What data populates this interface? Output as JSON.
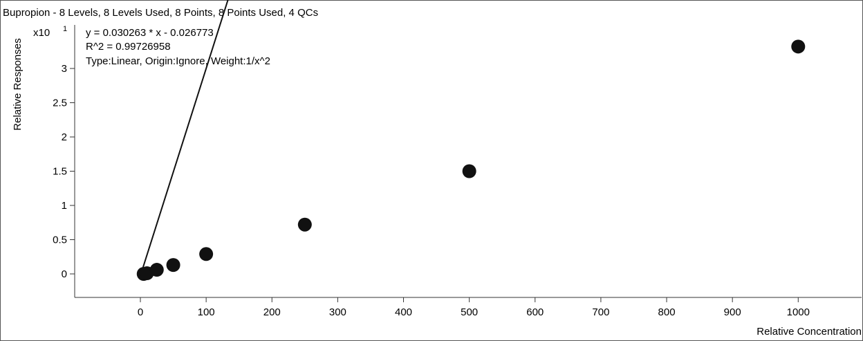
{
  "chart_data": {
    "type": "scatter",
    "title": "Bupropion - 8 Levels, 8 Levels Used, 8 Points, 8 Points Used, 4 QCs",
    "equation": "y = 0.030263 * x  - 0.026773",
    "r_squared": "R^2 = 0.99726958",
    "fit_info": "Type:Linear, Origin:Ignore, Weight:1/x^2",
    "xlabel": "Relative Concentration",
    "ylabel": "Relative Responses",
    "y_multiplier": "x10",
    "y_exponent": "1",
    "xlim": [
      -100,
      1095
    ],
    "ylim": [
      -0.35,
      3.6
    ],
    "x_ticks": [
      "0",
      "100",
      "200",
      "300",
      "400",
      "500",
      "600",
      "700",
      "800",
      "900",
      "1000"
    ],
    "y_ticks": [
      "0",
      "0.5",
      "1",
      "1.5",
      "2",
      "2.5",
      "3"
    ],
    "fit": {
      "slope": 0.030263,
      "intercept": -0.026773
    },
    "points": [
      {
        "x": 5,
        "y": 0.0
      },
      {
        "x": 10,
        "y": 0.01
      },
      {
        "x": 25,
        "y": 0.06
      },
      {
        "x": 50,
        "y": 0.13
      },
      {
        "x": 100,
        "y": 0.29
      },
      {
        "x": 250,
        "y": 0.72
      },
      {
        "x": 500,
        "y": 1.5
      },
      {
        "x": 1000,
        "y": 3.32
      }
    ],
    "grid": false,
    "legend": "none"
  }
}
